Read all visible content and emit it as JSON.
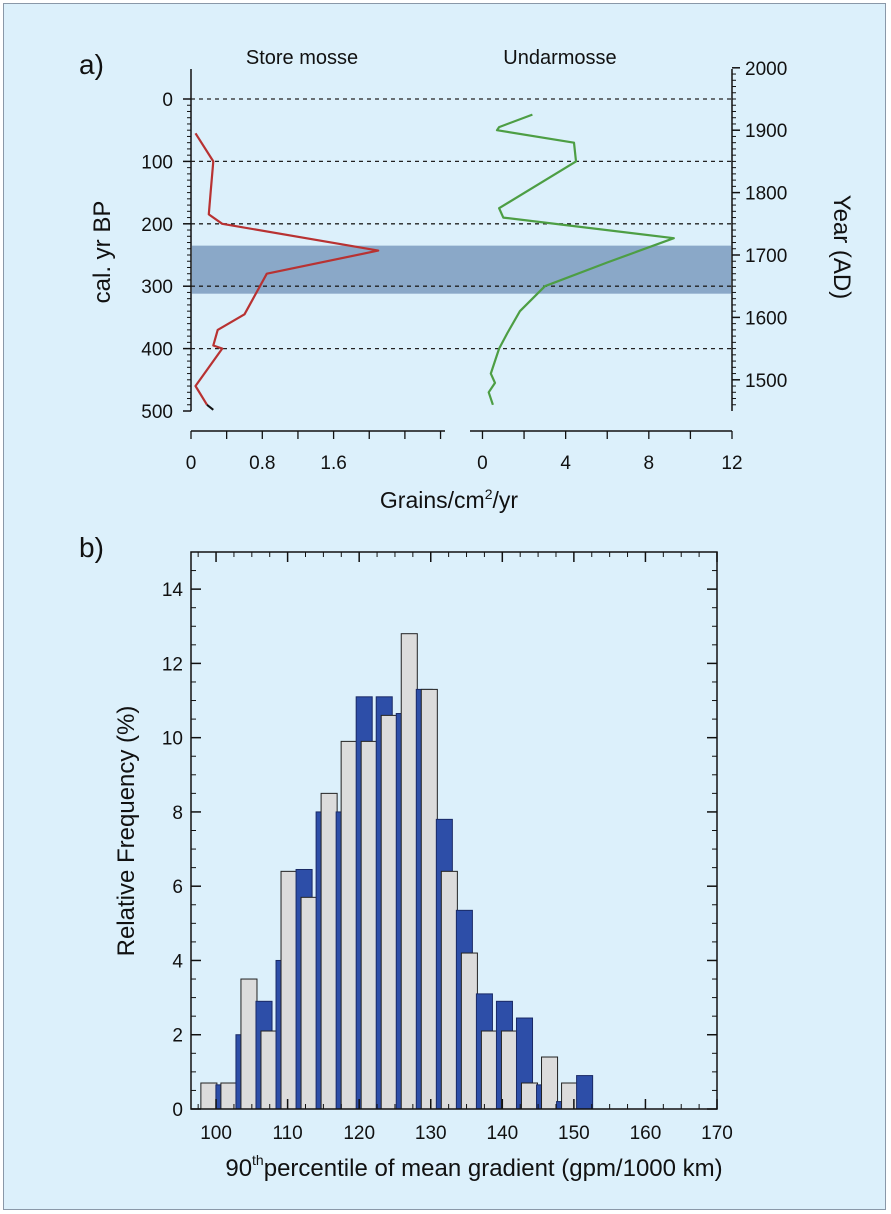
{
  "chart_data": [
    {
      "panel": "a)",
      "type": "line",
      "left_axis": {
        "label": "cal. yr BP",
        "range": [
          0,
          500
        ],
        "ticks": [
          "0",
          "100",
          "200",
          "300",
          "400",
          "500"
        ]
      },
      "right_axis": {
        "label": "Year (AD)",
        "range": [
          1450,
          2000
        ],
        "ticks": [
          "2000",
          "1900",
          "1800",
          "1700",
          "1600",
          "1500"
        ]
      },
      "xlabel": "Grains/cm²/yr",
      "highlight_band_cal_yr_bp": [
        235,
        312
      ],
      "series": [
        {
          "name": "Store mosse",
          "color": "#b83232",
          "x_ticks": [
            "0",
            "0.8",
            "1.6"
          ],
          "xlim": [
            0,
            2.85
          ],
          "points": [
            [
              0.05,
              55
            ],
            [
              0.25,
              100
            ],
            [
              0.22,
              150
            ],
            [
              0.2,
              185
            ],
            [
              0.35,
              200
            ],
            [
              2.1,
              243
            ],
            [
              0.85,
              280
            ],
            [
              0.6,
              345
            ],
            [
              0.3,
              370
            ],
            [
              0.25,
              395
            ],
            [
              0.35,
              400
            ],
            [
              0.05,
              460
            ],
            [
              0.18,
              490
            ]
          ],
          "tail": [
            [
              0.18,
              490
            ],
            [
              0.25,
              498
            ]
          ],
          "tail_color": "#111111"
        },
        {
          "name": "Undarmosse",
          "color": "#4d9e44",
          "x_ticks": [
            "0",
            "4",
            "8",
            "12"
          ],
          "xlim": [
            -0.6,
            12
          ],
          "points": [
            [
              2.4,
              25
            ],
            [
              0.8,
              45
            ],
            [
              0.7,
              50
            ],
            [
              4.4,
              70
            ],
            [
              4.5,
              100
            ],
            [
              0.8,
              175
            ],
            [
              1.0,
              190
            ],
            [
              9.2,
              223
            ],
            [
              6.0,
              262
            ],
            [
              3.0,
              300
            ],
            [
              1.8,
              340
            ],
            [
              1.2,
              375
            ],
            [
              0.8,
              400
            ],
            [
              0.4,
              440
            ],
            [
              0.6,
              455
            ],
            [
              0.3,
              470
            ],
            [
              0.5,
              490
            ]
          ]
        }
      ]
    },
    {
      "panel": "b)",
      "type": "bar",
      "xlabel": "90th percentile of mean gradient (gpm/1000 km)",
      "xlabel_main": "90",
      "xlabel_sup": "th",
      "xlabel_rest": "percentile of mean gradient (gpm/1000 km)",
      "ylabel": "Relative Frequency (%)",
      "xlim": [
        96.5,
        170
      ],
      "ylim": [
        0,
        15
      ],
      "x_ticks": [
        "100",
        "110",
        "120",
        "130",
        "140",
        "150",
        "160",
        "170"
      ],
      "y_ticks": [
        "0",
        "2",
        "4",
        "6",
        "8",
        "10",
        "12",
        "14"
      ],
      "categories": [
        99,
        101.8,
        104.6,
        107.4,
        110.2,
        113,
        115.8,
        118.6,
        121.4,
        124.2,
        127,
        129.8,
        132.6,
        135.4,
        138.2,
        141,
        143.8,
        146.6,
        149.4,
        152.2,
        155,
        157.8,
        160.6,
        163.4,
        166.2
      ],
      "series": [
        {
          "color": "#dcdcdc",
          "values": [
            0.7,
            0.7,
            3.5,
            2.1,
            6.4,
            5.7,
            8.5,
            9.9,
            9.9,
            10.6,
            12.8,
            11.3,
            6.4,
            4.2,
            2.1,
            2.1,
            0.7,
            1.4,
            0.7,
            0,
            0,
            0,
            0,
            0,
            0
          ]
        },
        {
          "color": "#2d4ea8",
          "values": [
            0.65,
            2.0,
            2.9,
            4.0,
            6.45,
            8.0,
            8.0,
            11.1,
            11.1,
            10.65,
            11.3,
            7.8,
            5.35,
            3.1,
            2.9,
            2.45,
            0.65,
            0.2,
            0.9,
            0,
            0,
            0,
            0,
            0,
            0
          ]
        }
      ]
    }
  ]
}
